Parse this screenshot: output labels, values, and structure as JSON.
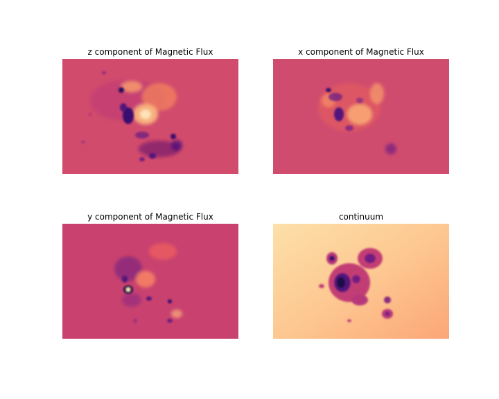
{
  "figure": {
    "colormap": "magma",
    "panels": [
      {
        "id": "z",
        "title": "z component of Magnetic Flux",
        "background": "#d14b6c"
      },
      {
        "id": "x",
        "title": "x component of Magnetic Flux",
        "background": "#d04c6e"
      },
      {
        "id": "y",
        "title": "y component of Magnetic Flux",
        "background": "#c9426f"
      },
      {
        "id": "continuum",
        "title": "continuum",
        "background": "#fcc992"
      }
    ]
  }
}
